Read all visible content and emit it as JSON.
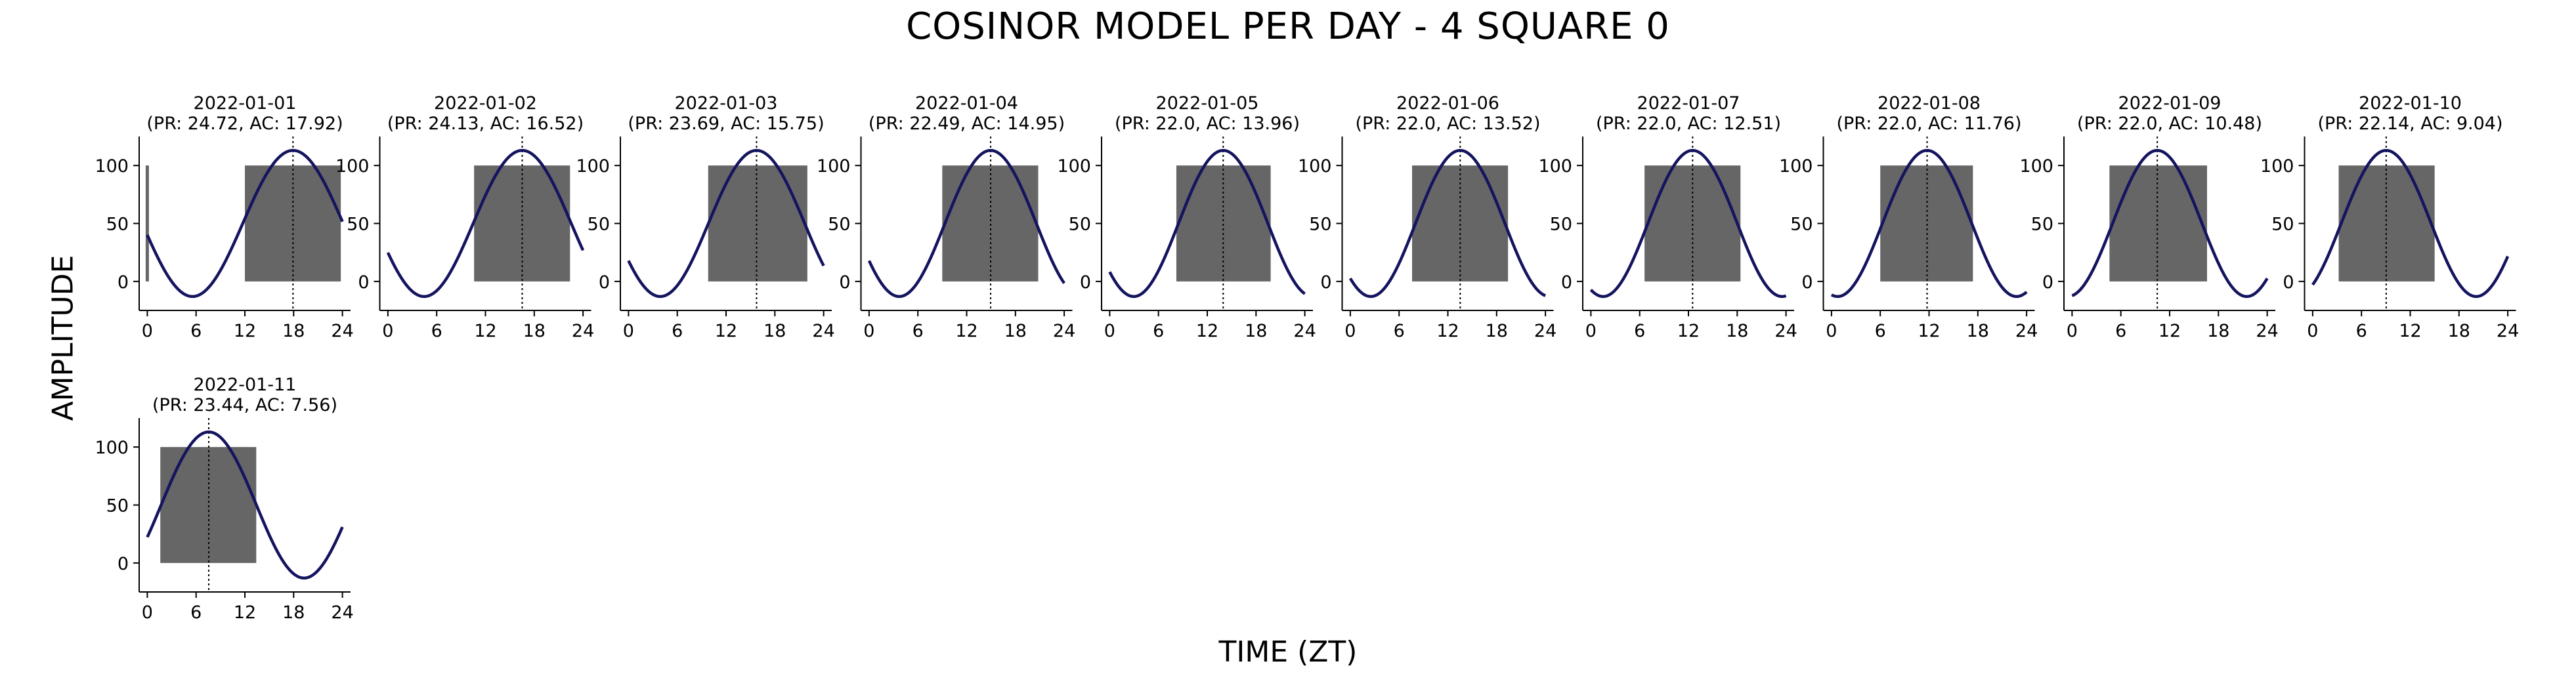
{
  "page": {
    "title": "COSINOR MODEL PER DAY - 4 SQUARE 0",
    "xlabel": "TIME (ZT)",
    "ylabel": "AMPLITUDE"
  },
  "colors": {
    "curve": "#14145f",
    "bar": "#666666",
    "axis": "#000000",
    "acrophase_line": "#000000"
  },
  "chart_data": {
    "type": "line",
    "title": "COSINOR MODEL PER DAY - 4 SQUARE 0",
    "xlabel": "TIME (ZT)",
    "ylabel": "AMPLITUDE",
    "xlim": [
      -1,
      25
    ],
    "ylim": [
      -25,
      125
    ],
    "xticks": [
      0,
      6,
      12,
      18,
      24
    ],
    "yticks": [
      0,
      50,
      100
    ],
    "grid": false,
    "model": {
      "mesor": 50,
      "amplitude": 63,
      "formula": "mesor + amplitude * cos(2*pi*(t - AC)/PR)"
    },
    "panels": [
      {
        "date": "2022-01-01",
        "subtitle": "(PR: 24.72, AC: 17.92)",
        "period": 24.72,
        "acrophase": 17.92,
        "bars": [
          {
            "start": -0.2,
            "end": 0.2,
            "height": 100
          },
          {
            "start": 12.0,
            "end": 23.8,
            "height": 100
          }
        ]
      },
      {
        "date": "2022-01-02",
        "subtitle": "(PR: 24.13, AC: 16.52)",
        "period": 24.13,
        "acrophase": 16.52,
        "bars": [
          {
            "start": 10.6,
            "end": 22.4,
            "height": 100
          }
        ]
      },
      {
        "date": "2022-01-03",
        "subtitle": "(PR: 23.69, AC: 15.75)",
        "period": 23.69,
        "acrophase": 15.75,
        "bars": [
          {
            "start": 9.8,
            "end": 22.0,
            "height": 100
          }
        ]
      },
      {
        "date": "2022-01-04",
        "subtitle": "(PR: 22.49, AC: 14.95)",
        "period": 22.49,
        "acrophase": 14.95,
        "bars": [
          {
            "start": 9.0,
            "end": 20.8,
            "height": 100
          }
        ]
      },
      {
        "date": "2022-01-05",
        "subtitle": "(PR: 22.0, AC: 13.96)",
        "period": 22.0,
        "acrophase": 13.96,
        "bars": [
          {
            "start": 8.2,
            "end": 19.8,
            "height": 100
          }
        ]
      },
      {
        "date": "2022-01-06",
        "subtitle": "(PR: 22.0, AC: 13.52)",
        "period": 22.0,
        "acrophase": 13.52,
        "bars": [
          {
            "start": 7.6,
            "end": 19.4,
            "height": 100
          }
        ]
      },
      {
        "date": "2022-01-07",
        "subtitle": "(PR: 22.0, AC: 12.51)",
        "period": 22.0,
        "acrophase": 12.51,
        "bars": [
          {
            "start": 6.6,
            "end": 18.4,
            "height": 100
          }
        ]
      },
      {
        "date": "2022-01-08",
        "subtitle": "(PR: 22.0, AC: 11.76)",
        "period": 22.0,
        "acrophase": 11.76,
        "bars": [
          {
            "start": 6.0,
            "end": 17.4,
            "height": 100
          }
        ]
      },
      {
        "date": "2022-01-09",
        "subtitle": "(PR: 22.0, AC: 10.48)",
        "period": 22.0,
        "acrophase": 10.48,
        "bars": [
          {
            "start": 4.6,
            "end": 16.6,
            "height": 100
          }
        ]
      },
      {
        "date": "2022-01-10",
        "subtitle": "(PR: 22.14, AC: 9.04)",
        "period": 22.14,
        "acrophase": 9.04,
        "bars": [
          {
            "start": 3.2,
            "end": 15.0,
            "height": 100
          }
        ]
      },
      {
        "date": "2022-01-11",
        "subtitle": "(PR: 23.44, AC: 7.56)",
        "period": 23.44,
        "acrophase": 7.56,
        "bars": [
          {
            "start": 1.6,
            "end": 13.4,
            "height": 100
          }
        ]
      }
    ]
  }
}
